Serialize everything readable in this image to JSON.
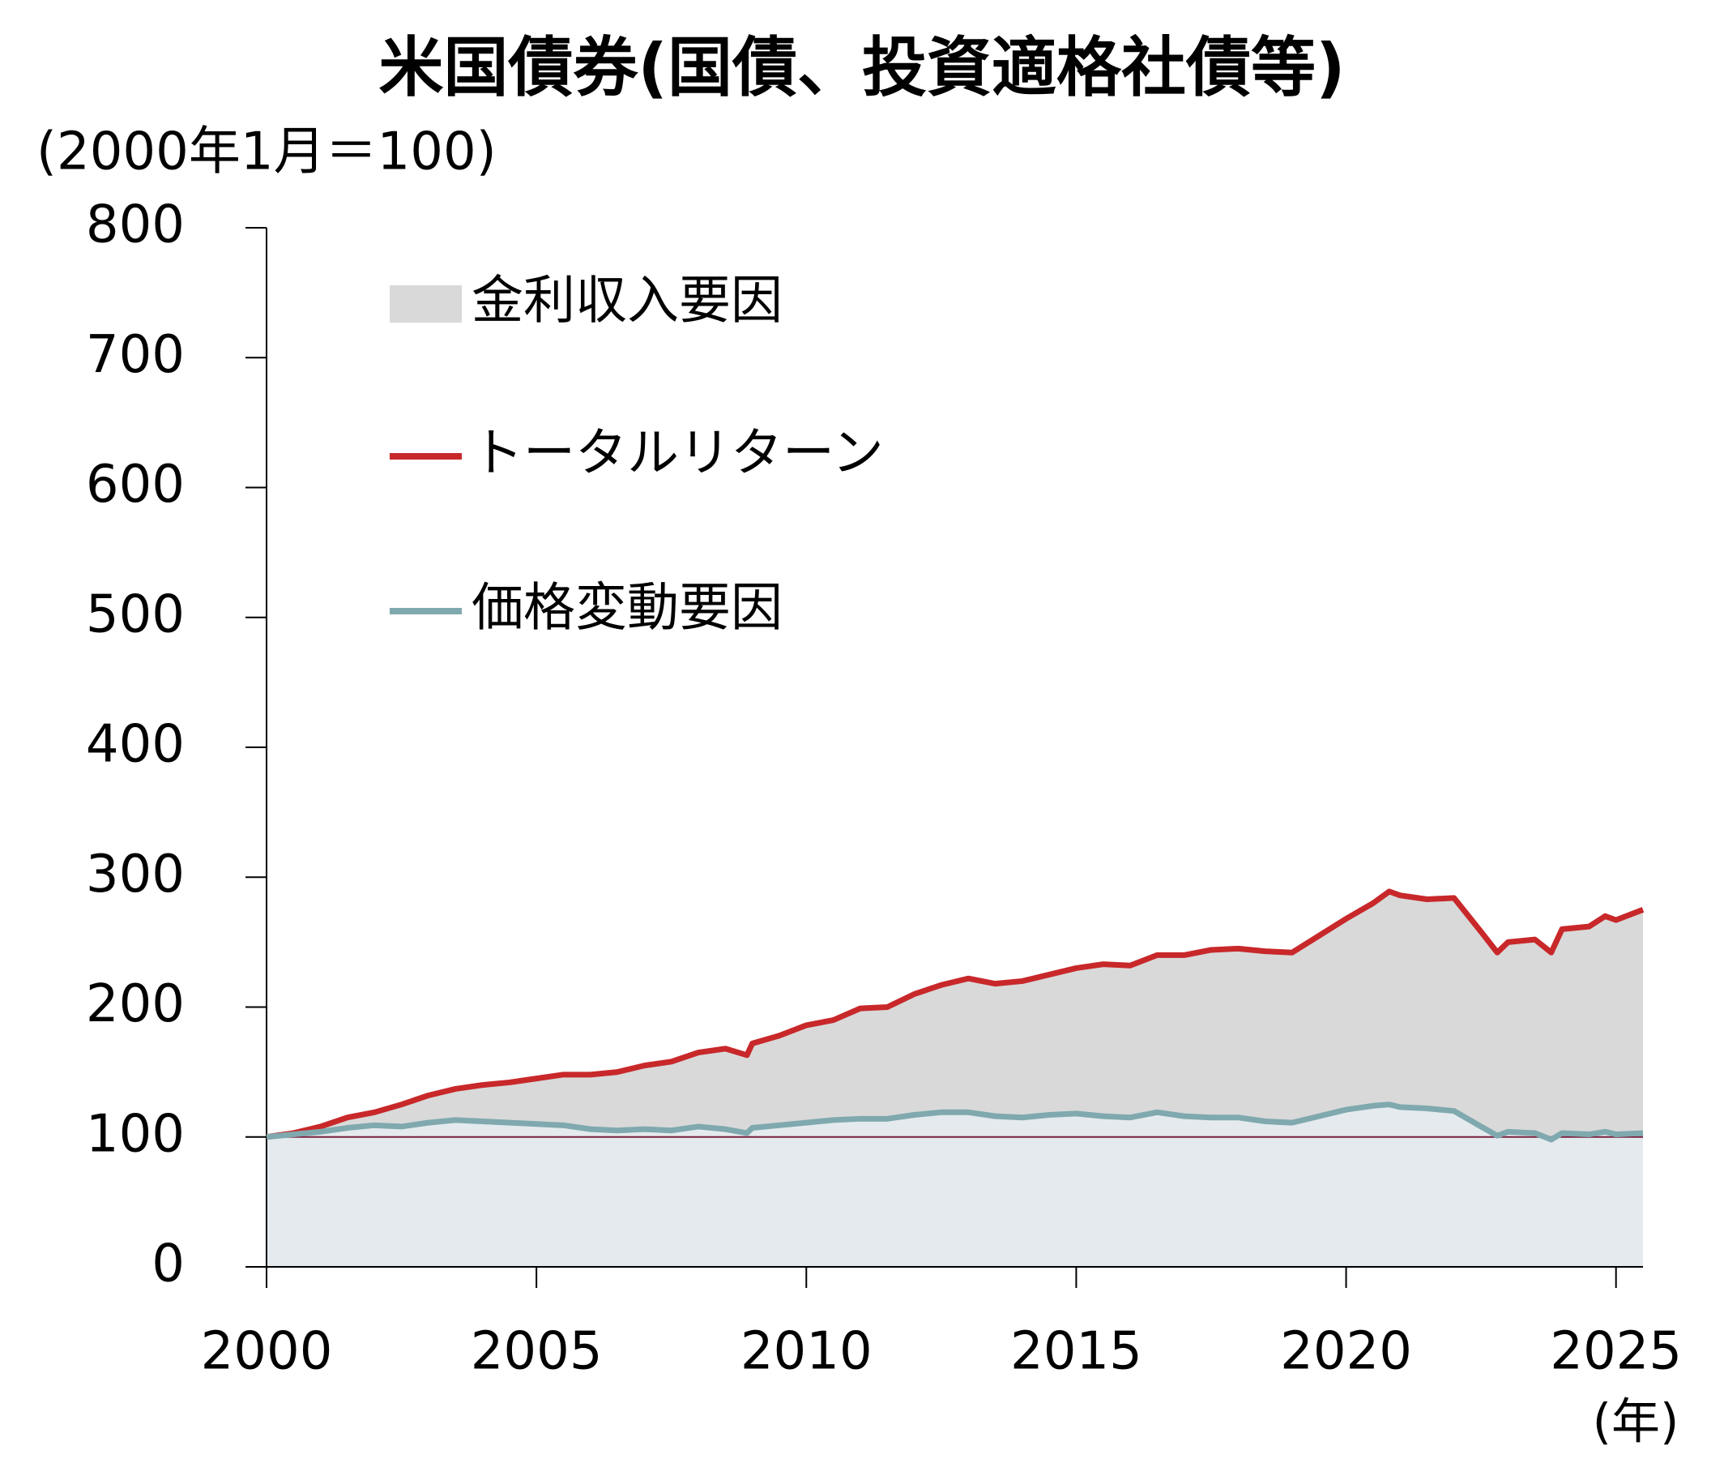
{
  "chart_data": {
    "type": "line",
    "title": "米国債券(国債、投資適格社債等)",
    "y_label": "(2000年1月＝100)",
    "x_label": "(年)",
    "x": [
      2000,
      2000.5,
      2001,
      2001.5,
      2002,
      2002.5,
      2003,
      2003.5,
      2004,
      2004.5,
      2005,
      2005.5,
      2006,
      2006.5,
      2007,
      2007.5,
      2008,
      2008.5,
      2008.9,
      2009,
      2009.5,
      2010,
      2010.5,
      2011,
      2011.5,
      2012,
      2012.5,
      2013,
      2013.5,
      2014,
      2014.5,
      2015,
      2015.5,
      2016,
      2016.5,
      2017,
      2017.5,
      2018,
      2018.5,
      2019,
      2019.5,
      2020,
      2020.5,
      2020.8,
      2021,
      2021.5,
      2022,
      2022.5,
      2022.8,
      2023,
      2023.5,
      2023.8,
      2024,
      2024.5,
      2024.8,
      2025,
      2025.5
    ],
    "series": [
      {
        "name": "金利収入要因",
        "color": "#d9d9d9",
        "type": "band"
      },
      {
        "name": "トータルリターン",
        "color": "#c8282a",
        "values": [
          100,
          103,
          108,
          115,
          119,
          125,
          132,
          137,
          140,
          142,
          145,
          148,
          148,
          150,
          155,
          158,
          165,
          168,
          163,
          172,
          178,
          186,
          190,
          199,
          200,
          210,
          217,
          222,
          218,
          220,
          225,
          230,
          233,
          232,
          240,
          240,
          244,
          245,
          243,
          242,
          255,
          268,
          280,
          289,
          286,
          283,
          284,
          258,
          242,
          250,
          252,
          242,
          260,
          262,
          270,
          267,
          275
        ]
      },
      {
        "name": "価格変動要因",
        "color": "#7fa9ae",
        "values": [
          100,
          102,
          104,
          107,
          109,
          108,
          111,
          113,
          112,
          111,
          110,
          109,
          106,
          105,
          106,
          105,
          108,
          106,
          103,
          107,
          109,
          111,
          113,
          114,
          114,
          117,
          119,
          119,
          116,
          115,
          117,
          118,
          116,
          115,
          119,
          116,
          115,
          115,
          112,
          111,
          116,
          121,
          124,
          125,
          123,
          122,
          120,
          108,
          101,
          104,
          103,
          98,
          103,
          102,
          104,
          102,
          103
        ]
      }
    ],
    "base_fill": "#e4eaed",
    "reference_line": {
      "value": 100,
      "color": "#7a1f3d"
    },
    "xlim": [
      2000,
      2025.5
    ],
    "xticks": [
      2000,
      2005,
      2010,
      2015,
      2020,
      2025
    ],
    "ylim": [
      0,
      800
    ],
    "yticks": [
      0,
      100,
      200,
      300,
      400,
      500,
      600,
      700,
      800
    ]
  }
}
